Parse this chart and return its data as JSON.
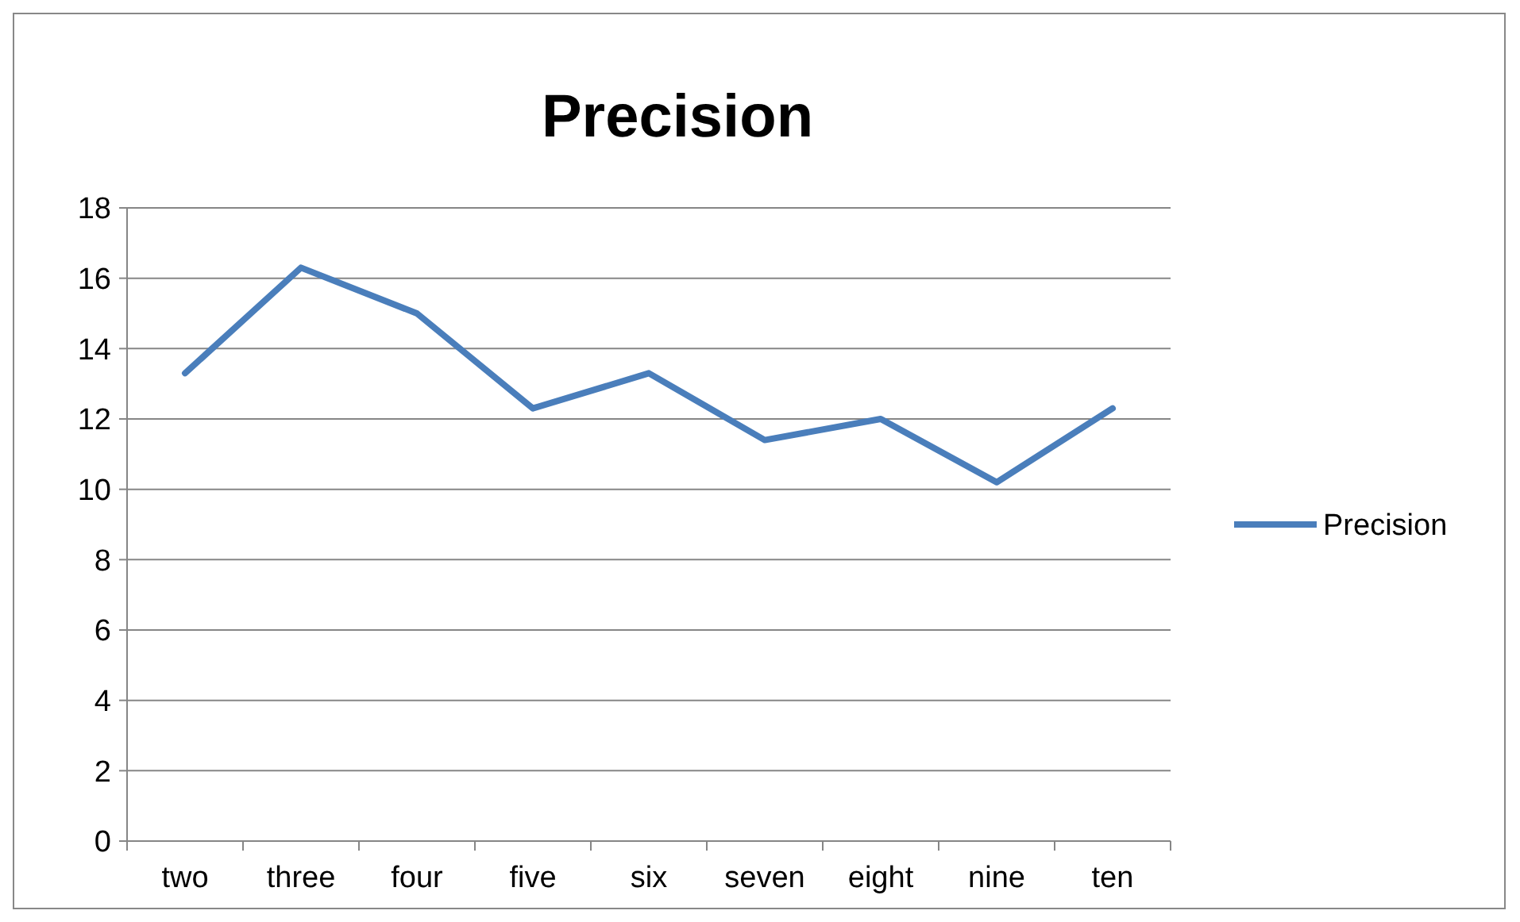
{
  "chart_data": {
    "type": "line",
    "title": "Precision",
    "categories": [
      "two",
      "three",
      "four",
      "five",
      "six",
      "seven",
      "eight",
      "nine",
      "ten"
    ],
    "series": [
      {
        "name": "Precision",
        "color": "#4a7ebb",
        "values": [
          13.3,
          16.3,
          15,
          12.3,
          13.3,
          11.4,
          12,
          10.2,
          12.3
        ]
      }
    ],
    "ylim": [
      0,
      18
    ],
    "yticks": [
      0,
      2,
      4,
      6,
      8,
      10,
      12,
      14,
      16,
      18
    ],
    "grid": "y",
    "legend": "right",
    "marker": "none",
    "line_style": "solid"
  }
}
